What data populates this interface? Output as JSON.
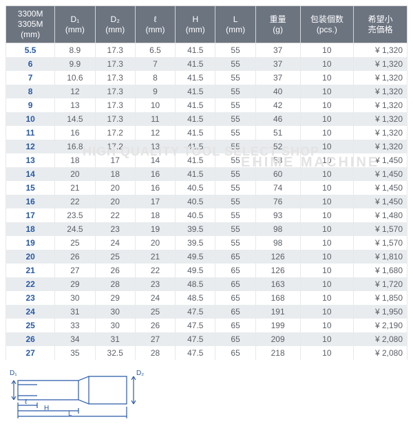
{
  "watermark": {
    "line1": "HIGH QUALITY TOOL SELECT SHOP",
    "line2": "EHIME MACHINE"
  },
  "table": {
    "columns": [
      {
        "label": "3300M\n3305M\n(mm)",
        "width": "11%"
      },
      {
        "label": "D₁\n(mm)",
        "width": "9%"
      },
      {
        "label": "D₂\n(mm)",
        "width": "9%"
      },
      {
        "label": "ℓ\n(mm)",
        "width": "9%"
      },
      {
        "label": "H\n(mm)",
        "width": "9%"
      },
      {
        "label": "L\n(mm)",
        "width": "9%"
      },
      {
        "label": "重量\n(g)",
        "width": "10%"
      },
      {
        "label": "包装個数\n(pcs.)",
        "width": "12%"
      },
      {
        "label": "希望小\n売価格",
        "width": "12%"
      }
    ],
    "rows": [
      [
        "5.5",
        "8.9",
        "17.3",
        "6.5",
        "41.5",
        "55",
        "37",
        "10",
        "¥ 1,320"
      ],
      [
        "6",
        "9.9",
        "17.3",
        "7",
        "41.5",
        "55",
        "37",
        "10",
        "¥ 1,320"
      ],
      [
        "7",
        "10.6",
        "17.3",
        "8",
        "41.5",
        "55",
        "37",
        "10",
        "¥ 1,320"
      ],
      [
        "8",
        "12",
        "17.3",
        "9",
        "41.5",
        "55",
        "40",
        "10",
        "¥ 1,320"
      ],
      [
        "9",
        "13",
        "17.3",
        "10",
        "41.5",
        "55",
        "42",
        "10",
        "¥ 1,320"
      ],
      [
        "10",
        "14.5",
        "17.3",
        "11",
        "41.5",
        "55",
        "46",
        "10",
        "¥ 1,320"
      ],
      [
        "11",
        "16",
        "17.2",
        "12",
        "41.5",
        "55",
        "51",
        "10",
        "¥ 1,320"
      ],
      [
        "12",
        "16.8",
        "17.2",
        "13",
        "41.5",
        "55",
        "52",
        "10",
        "¥ 1,320"
      ],
      [
        "13",
        "18",
        "17",
        "14",
        "41.5",
        "55",
        "53",
        "10",
        "¥ 1,450"
      ],
      [
        "14",
        "20",
        "18",
        "16",
        "41.5",
        "55",
        "60",
        "10",
        "¥ 1,450"
      ],
      [
        "15",
        "21",
        "20",
        "16",
        "40.5",
        "55",
        "74",
        "10",
        "¥ 1,450"
      ],
      [
        "16",
        "22",
        "20",
        "17",
        "40.5",
        "55",
        "76",
        "10",
        "¥ 1,450"
      ],
      [
        "17",
        "23.5",
        "22",
        "18",
        "40.5",
        "55",
        "93",
        "10",
        "¥ 1,480"
      ],
      [
        "18",
        "24.5",
        "23",
        "19",
        "39.5",
        "55",
        "98",
        "10",
        "¥ 1,570"
      ],
      [
        "19",
        "25",
        "24",
        "20",
        "39.5",
        "55",
        "98",
        "10",
        "¥ 1,570"
      ],
      [
        "20",
        "26",
        "25",
        "21",
        "49.5",
        "65",
        "126",
        "10",
        "¥ 1,810"
      ],
      [
        "21",
        "27",
        "26",
        "22",
        "49.5",
        "65",
        "126",
        "10",
        "¥ 1,680"
      ],
      [
        "22",
        "29",
        "28",
        "23",
        "48.5",
        "65",
        "163",
        "10",
        "¥ 1,720"
      ],
      [
        "23",
        "30",
        "29",
        "24",
        "48.5",
        "65",
        "168",
        "10",
        "¥ 1,850"
      ],
      [
        "24",
        "31",
        "30",
        "25",
        "47.5",
        "65",
        "191",
        "10",
        "¥ 1,950"
      ],
      [
        "25",
        "33",
        "30",
        "26",
        "47.5",
        "65",
        "199",
        "10",
        "¥ 2,190"
      ],
      [
        "26",
        "34",
        "31",
        "27",
        "47.5",
        "65",
        "209",
        "10",
        "¥ 2,080"
      ],
      [
        "27",
        "35",
        "32.5",
        "28",
        "47.5",
        "65",
        "218",
        "10",
        "¥ 2,080"
      ]
    ],
    "header_bg": "#6c7480",
    "row_alt_bg": "#e9ecef",
    "size_color": "#2859a6",
    "text_color": "#5a5f66"
  },
  "diagram": {
    "stroke": "#2859a6",
    "labels": {
      "d1": "D₁",
      "d2": "D₂",
      "l": "ℓ",
      "h": "H",
      "L": "L"
    }
  }
}
